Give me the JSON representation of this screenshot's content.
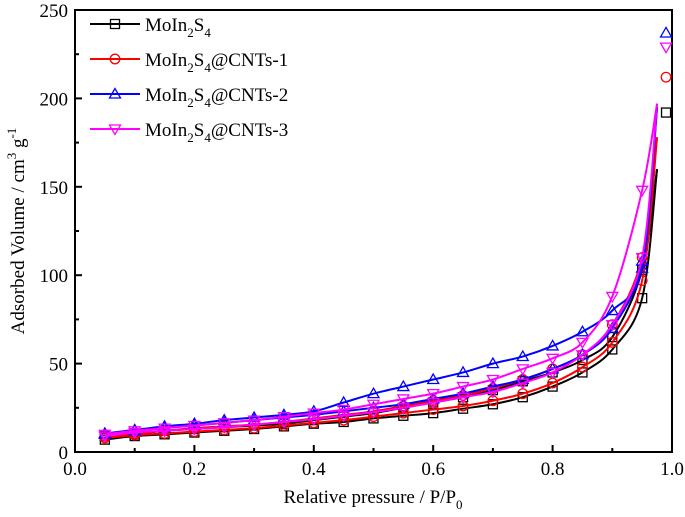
{
  "chart_data": {
    "type": "scatter-line",
    "xlabel": {
      "main": "Relative pressure / P/P",
      "sub": "0"
    },
    "ylabel": {
      "p1": "Adsorbed Volume / cm",
      "sup1": "3",
      "p2": " g",
      "sup2": "-1"
    },
    "xlim": [
      0.0,
      1.0
    ],
    "ylim": [
      0,
      250
    ],
    "xticks": [
      "0.0",
      "0.2",
      "0.4",
      "0.6",
      "0.8",
      "1.0"
    ],
    "yticks": [
      "0",
      "50",
      "100",
      "150",
      "200",
      "250"
    ],
    "legend_position": "top-left",
    "series": [
      {
        "name": "MoIn2S4",
        "label": {
          "a": "MoIn",
          "s1": "2",
          "b": "S",
          "s2": "4",
          "c": ""
        },
        "color": "#000000",
        "marker": "square",
        "adsorption": [
          [
            0.05,
            7
          ],
          [
            0.1,
            9
          ],
          [
            0.15,
            10
          ],
          [
            0.2,
            11
          ],
          [
            0.25,
            12
          ],
          [
            0.3,
            13
          ],
          [
            0.35,
            14.5
          ],
          [
            0.4,
            16
          ],
          [
            0.45,
            17
          ],
          [
            0.5,
            19
          ],
          [
            0.55,
            20.5
          ],
          [
            0.6,
            22
          ],
          [
            0.65,
            24.5
          ],
          [
            0.7,
            27
          ],
          [
            0.75,
            31
          ],
          [
            0.8,
            37
          ],
          [
            0.85,
            45
          ],
          [
            0.9,
            58
          ],
          [
            0.95,
            87
          ],
          [
            0.99,
            192
          ]
        ],
        "desorption": [
          [
            0.95,
            103
          ],
          [
            0.9,
            65
          ],
          [
            0.85,
            52
          ],
          [
            0.8,
            45
          ],
          [
            0.75,
            40
          ],
          [
            0.7,
            35
          ],
          [
            0.65,
            31
          ],
          [
            0.6,
            28
          ],
          [
            0.55,
            25
          ],
          [
            0.5,
            22
          ],
          [
            0.45,
            20
          ],
          [
            0.4,
            18
          ],
          [
            0.35,
            16
          ],
          [
            0.3,
            15
          ],
          [
            0.25,
            14
          ],
          [
            0.2,
            13
          ],
          [
            0.15,
            12
          ],
          [
            0.1,
            10
          ],
          [
            0.05,
            9
          ]
        ],
        "line_end": [
          0.975,
          160
        ]
      },
      {
        "name": "MoIn2S4@CNTs-1",
        "label": {
          "a": "MoIn",
          "s1": "2",
          "b": "S",
          "s2": "4",
          "c": "@CNTs-1"
        },
        "color": "#ff0000",
        "marker": "circle",
        "adsorption": [
          [
            0.05,
            8
          ],
          [
            0.1,
            9.5
          ],
          [
            0.15,
            10.5
          ],
          [
            0.2,
            11.5
          ],
          [
            0.25,
            12.5
          ],
          [
            0.3,
            13.5
          ],
          [
            0.35,
            15
          ],
          [
            0.4,
            16.5
          ],
          [
            0.45,
            18
          ],
          [
            0.5,
            20
          ],
          [
            0.55,
            22
          ],
          [
            0.6,
            24
          ],
          [
            0.65,
            26
          ],
          [
            0.7,
            29
          ],
          [
            0.75,
            33
          ],
          [
            0.8,
            39
          ],
          [
            0.85,
            48
          ],
          [
            0.9,
            62
          ],
          [
            0.95,
            97
          ],
          [
            0.99,
            212
          ]
        ],
        "desorption": [
          [
            0.95,
            110
          ],
          [
            0.9,
            72
          ],
          [
            0.85,
            55
          ],
          [
            0.8,
            47
          ],
          [
            0.75,
            41
          ],
          [
            0.7,
            36
          ],
          [
            0.65,
            32
          ],
          [
            0.6,
            29
          ],
          [
            0.55,
            26
          ],
          [
            0.5,
            23
          ],
          [
            0.45,
            21
          ],
          [
            0.4,
            19
          ],
          [
            0.35,
            17
          ],
          [
            0.3,
            15.5
          ],
          [
            0.25,
            14.5
          ],
          [
            0.2,
            13.5
          ],
          [
            0.15,
            12
          ],
          [
            0.1,
            10.5
          ],
          [
            0.05,
            9
          ]
        ],
        "line_end": [
          0.975,
          178
        ]
      },
      {
        "name": "MoIn2S4@CNTs-2",
        "label": {
          "a": "MoIn",
          "s1": "2",
          "b": "S",
          "s2": "4",
          "c": "@CNTs-2"
        },
        "color": "#0000ff",
        "marker": "triangle-up",
        "adsorption": [
          [
            0.05,
            10
          ],
          [
            0.1,
            12
          ],
          [
            0.15,
            13.5
          ],
          [
            0.2,
            15
          ],
          [
            0.25,
            16.5
          ],
          [
            0.3,
            18
          ],
          [
            0.35,
            19.5
          ],
          [
            0.4,
            21
          ],
          [
            0.45,
            23
          ],
          [
            0.5,
            25
          ],
          [
            0.55,
            27
          ],
          [
            0.6,
            30
          ],
          [
            0.65,
            33
          ],
          [
            0.7,
            37
          ],
          [
            0.75,
            41
          ],
          [
            0.8,
            47
          ],
          [
            0.85,
            55
          ],
          [
            0.9,
            70
          ],
          [
            0.95,
            108
          ],
          [
            0.99,
            237
          ]
        ],
        "desorption": [
          [
            0.95,
            104
          ],
          [
            0.9,
            80
          ],
          [
            0.85,
            68
          ],
          [
            0.8,
            60
          ],
          [
            0.75,
            54
          ],
          [
            0.7,
            50
          ],
          [
            0.65,
            45
          ],
          [
            0.6,
            41
          ],
          [
            0.55,
            37
          ],
          [
            0.5,
            33
          ],
          [
            0.45,
            28
          ],
          [
            0.4,
            23
          ],
          [
            0.35,
            21
          ],
          [
            0.3,
            19.5
          ],
          [
            0.25,
            18
          ],
          [
            0.2,
            16
          ],
          [
            0.15,
            14.5
          ],
          [
            0.1,
            12.5
          ],
          [
            0.05,
            10.5
          ]
        ],
        "line_end": [
          0.975,
          195
        ]
      },
      {
        "name": "MoIn2S4@CNTs-3",
        "label": {
          "a": "MoIn",
          "s1": "2",
          "b": "S",
          "s2": "4",
          "c": "@CNTs-3"
        },
        "color": "#ff00ff",
        "marker": "triangle-down",
        "adsorption": [
          [
            0.05,
            9
          ],
          [
            0.1,
            11
          ],
          [
            0.15,
            12
          ],
          [
            0.2,
            13
          ],
          [
            0.25,
            14
          ],
          [
            0.3,
            15.5
          ],
          [
            0.35,
            17
          ],
          [
            0.4,
            18.5
          ],
          [
            0.45,
            20.5
          ],
          [
            0.5,
            22.5
          ],
          [
            0.55,
            25
          ],
          [
            0.6,
            28
          ],
          [
            0.65,
            31
          ],
          [
            0.7,
            34
          ],
          [
            0.75,
            39
          ],
          [
            0.8,
            45
          ],
          [
            0.85,
            55
          ],
          [
            0.9,
            72
          ],
          [
            0.95,
            110
          ],
          [
            0.99,
            229
          ]
        ],
        "desorption": [
          [
            0.95,
            148
          ],
          [
            0.9,
            88
          ],
          [
            0.85,
            62
          ],
          [
            0.8,
            53
          ],
          [
            0.75,
            47
          ],
          [
            0.7,
            41
          ],
          [
            0.65,
            37
          ],
          [
            0.6,
            33
          ],
          [
            0.55,
            30
          ],
          [
            0.5,
            27
          ],
          [
            0.45,
            24
          ],
          [
            0.4,
            22
          ],
          [
            0.35,
            20
          ],
          [
            0.3,
            18
          ],
          [
            0.25,
            16.5
          ],
          [
            0.2,
            15
          ],
          [
            0.15,
            13.5
          ],
          [
            0.1,
            12
          ],
          [
            0.05,
            10
          ]
        ],
        "line_end": [
          0.975,
          197
        ]
      }
    ]
  }
}
